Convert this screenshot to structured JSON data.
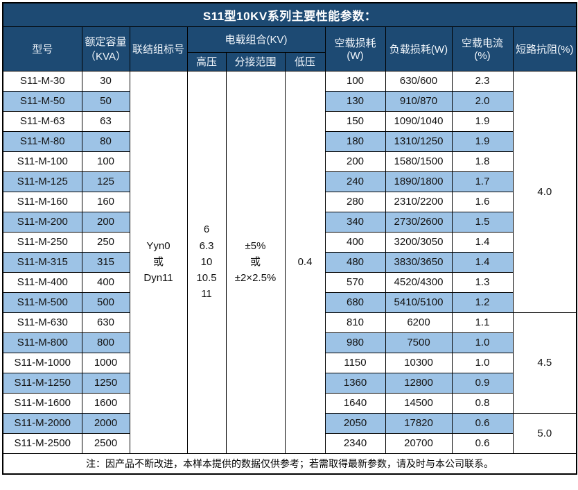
{
  "title": "S11型10KV系列主要性能参数：",
  "colors": {
    "header_bg": "#1d4a73",
    "stripe_bg": "#9dc3e6",
    "border": "#000000",
    "header_text": "#f2f7fc"
  },
  "headers": {
    "model": "型号",
    "capacity": "额定容量\n（KVA）",
    "connection": "联结组标号",
    "voltage_group": "电载组合(KV)",
    "high_voltage": "高压",
    "tap_range": "分接范围",
    "low_voltage": "低压",
    "no_load_loss": "空载损耗(W)",
    "load_loss": "负载损耗(W)",
    "no_load_current": "空载电流(%)",
    "impedance": "短路抗阻(%)"
  },
  "merged": {
    "connection": "Yyn0\n或\nDyn11",
    "high_voltage": "6\n6.3\n10\n10.5\n11",
    "tap_range": "±5%\n或\n±2×2.5%",
    "low_voltage": "0.4"
  },
  "rows": [
    {
      "model": "S11-M-30",
      "capacity": "30",
      "no_load_loss": "100",
      "load_loss": "630/600",
      "no_load_current": "2.3"
    },
    {
      "model": "S11-M-50",
      "capacity": "50",
      "no_load_loss": "130",
      "load_loss": "910/870",
      "no_load_current": "2.0"
    },
    {
      "model": "S11-M-63",
      "capacity": "63",
      "no_load_loss": "150",
      "load_loss": "1090/1040",
      "no_load_current": "1.9"
    },
    {
      "model": "S11-M-80",
      "capacity": "80",
      "no_load_loss": "180",
      "load_loss": "1310/1250",
      "no_load_current": "1.9"
    },
    {
      "model": "S11-M-100",
      "capacity": "100",
      "no_load_loss": "200",
      "load_loss": "1580/1500",
      "no_load_current": "1.8"
    },
    {
      "model": "S11-M-125",
      "capacity": "125",
      "no_load_loss": "240",
      "load_loss": "1890/1800",
      "no_load_current": "1.7"
    },
    {
      "model": "S11-M-160",
      "capacity": "160",
      "no_load_loss": "280",
      "load_loss": "2310/2200",
      "no_load_current": "1.6"
    },
    {
      "model": "S11-M-200",
      "capacity": "200",
      "no_load_loss": "340",
      "load_loss": "2730/2600",
      "no_load_current": "1.5"
    },
    {
      "model": "S11-M-250",
      "capacity": "250",
      "no_load_loss": "400",
      "load_loss": "3200/3050",
      "no_load_current": "1.4"
    },
    {
      "model": "S11-M-315",
      "capacity": "315",
      "no_load_loss": "480",
      "load_loss": "3830/3650",
      "no_load_current": "1.4"
    },
    {
      "model": "S11-M-400",
      "capacity": "400",
      "no_load_loss": "570",
      "load_loss": "4520/4300",
      "no_load_current": "1.3"
    },
    {
      "model": "S11-M-500",
      "capacity": "500",
      "no_load_loss": "680",
      "load_loss": "5410/5100",
      "no_load_current": "1.2"
    },
    {
      "model": "S11-M-630",
      "capacity": "630",
      "no_load_loss": "810",
      "load_loss": "6200",
      "no_load_current": "1.1"
    },
    {
      "model": "S11-M-800",
      "capacity": "800",
      "no_load_loss": "980",
      "load_loss": "7500",
      "no_load_current": "1.0"
    },
    {
      "model": "S11-M-1000",
      "capacity": "1000",
      "no_load_loss": "1150",
      "load_loss": "10300",
      "no_load_current": "1.0"
    },
    {
      "model": "S11-M-1250",
      "capacity": "1250",
      "no_load_loss": "1360",
      "load_loss": "12800",
      "no_load_current": "0.9"
    },
    {
      "model": "S11-M-1600",
      "capacity": "1600",
      "no_load_loss": "1640",
      "load_loss": "14500",
      "no_load_current": "0.8"
    },
    {
      "model": "S11-M-2000",
      "capacity": "2000",
      "no_load_loss": "2050",
      "load_loss": "17820",
      "no_load_current": "0.6"
    },
    {
      "model": "S11-M-2500",
      "capacity": "2500",
      "no_load_loss": "2340",
      "load_loss": "20700",
      "no_load_current": "0.6"
    }
  ],
  "impedance_groups": [
    {
      "value": "4.0",
      "start": 0,
      "span": 12
    },
    {
      "value": "4.5",
      "start": 12,
      "span": 5
    },
    {
      "value": "5.0",
      "start": 17,
      "span": 2
    }
  ],
  "note": "注：因产品不断改进，本样本提供的数据仅供参考；若需取得最新参数，请及时与本公司联系。"
}
